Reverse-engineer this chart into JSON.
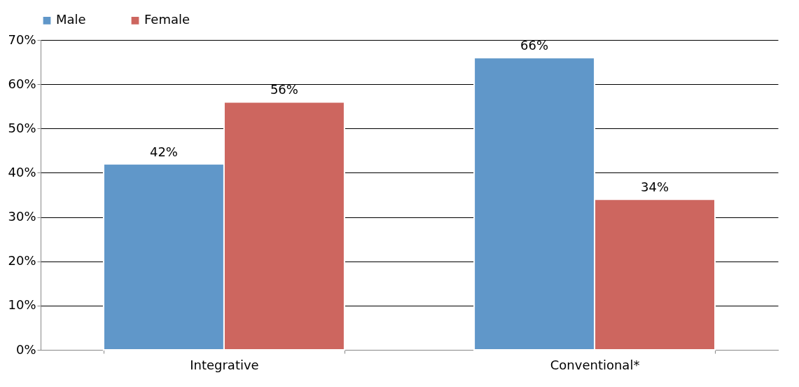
{
  "chart_data": {
    "type": "bar",
    "categories": [
      "Integrative",
      "Conventional*"
    ],
    "series": [
      {
        "name": "Male",
        "color": "#6097c9",
        "values": [
          42,
          66
        ],
        "value_labels": [
          "42%",
          "66%"
        ]
      },
      {
        "name": "Female",
        "color": "#cd665f",
        "values": [
          56,
          34
        ],
        "value_labels": [
          "56%",
          "34%"
        ]
      }
    ],
    "ylim": [
      0,
      70
    ],
    "yticks": [
      {
        "value": 0,
        "label": "0%"
      },
      {
        "value": 10,
        "label": "10%"
      },
      {
        "value": 20,
        "label": "20%"
      },
      {
        "value": 30,
        "label": "30%"
      },
      {
        "value": 40,
        "label": "40%"
      },
      {
        "value": 50,
        "label": "50%"
      },
      {
        "value": 60,
        "label": "60%"
      },
      {
        "value": 70,
        "label": "70%"
      }
    ],
    "grid": "y",
    "legend": "top"
  }
}
